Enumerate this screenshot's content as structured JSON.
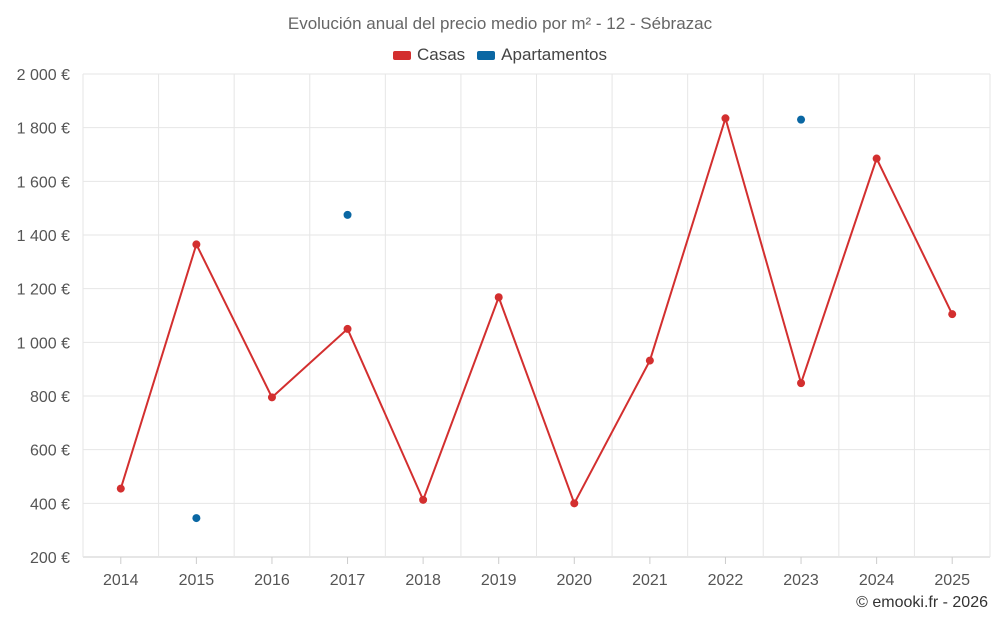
{
  "colors": {
    "casas": "#d32f2f",
    "apartamentos": "#0a67a3",
    "grid": "#e6e6e6",
    "axis": "#cccccc"
  },
  "copyright": "© emooki.fr - 2026",
  "chart_data": {
    "type": "line",
    "title": "Evolución anual del precio medio por m² - 12 - Sébrazac",
    "categories": [
      "2014",
      "2015",
      "2016",
      "2017",
      "2018",
      "2019",
      "2020",
      "2021",
      "2022",
      "2023",
      "2024",
      "2025"
    ],
    "y_ticks": [
      "200 €",
      "400 €",
      "600 €",
      "800 €",
      "1 000 €",
      "1 200 €",
      "1 400 €",
      "1 600 €",
      "1 800 €",
      "2 000 €"
    ],
    "ylim": [
      200,
      2000
    ],
    "grid": true,
    "legend_position": "top-center",
    "series": [
      {
        "name": "Casas",
        "color": "#d32f2f",
        "line": true,
        "values": [
          455,
          1365,
          795,
          1050,
          413,
          1168,
          400,
          932,
          1835,
          848,
          1685,
          1105
        ]
      },
      {
        "name": "Apartamentos",
        "color": "#0a67a3",
        "line": false,
        "values": [
          null,
          345,
          null,
          1475,
          null,
          null,
          null,
          null,
          null,
          1830,
          null,
          null
        ]
      }
    ]
  }
}
